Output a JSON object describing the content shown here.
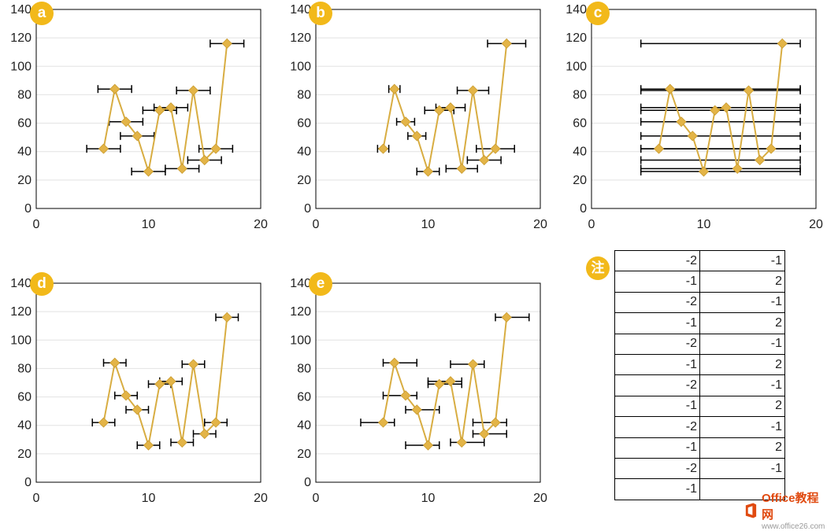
{
  "colors": {
    "series": "#d8ad42",
    "marker": "#e3b447",
    "errorbar": "#000000",
    "grid": "#e2e2e2",
    "badge": "#f2b91a"
  },
  "note": {
    "badge": "注",
    "rows": [
      [
        "-2",
        "-1"
      ],
      [
        "-1",
        "2"
      ],
      [
        "-2",
        "-1"
      ],
      [
        "-1",
        "2"
      ],
      [
        "-2",
        "-1"
      ],
      [
        "-1",
        "2"
      ],
      [
        "-2",
        "-1"
      ],
      [
        "-1",
        "2"
      ],
      [
        "-2",
        "-1"
      ],
      [
        "-1",
        "2"
      ],
      [
        "-2",
        "-1"
      ],
      [
        "-1",
        ""
      ]
    ]
  },
  "watermark": {
    "logo_text": "Office教程网",
    "url": "www.office26.com"
  },
  "chart_data": [
    {
      "type": "scatter",
      "badge": "a",
      "xlim": [
        0,
        20
      ],
      "ylim": [
        0,
        140
      ],
      "x_ticks": [
        "0",
        "10",
        "20"
      ],
      "y_ticks": [
        "0",
        "20",
        "40",
        "60",
        "80",
        "100",
        "120",
        "140"
      ],
      "grid": "horizontal",
      "points": [
        {
          "x": 6,
          "y": 42,
          "xerr_minus": 1.5,
          "xerr_plus": 1.5
        },
        {
          "x": 7,
          "y": 84,
          "xerr_minus": 1.5,
          "xerr_plus": 1.5
        },
        {
          "x": 8,
          "y": 61,
          "xerr_minus": 1.5,
          "xerr_plus": 1.5
        },
        {
          "x": 9,
          "y": 51,
          "xerr_minus": 1.5,
          "xerr_plus": 1.5
        },
        {
          "x": 10,
          "y": 26,
          "xerr_minus": 1.5,
          "xerr_plus": 1.5
        },
        {
          "x": 11,
          "y": 69,
          "xerr_minus": 1.5,
          "xerr_plus": 1.5
        },
        {
          "x": 12,
          "y": 71,
          "xerr_minus": 1.5,
          "xerr_plus": 1.5
        },
        {
          "x": 13,
          "y": 28,
          "xerr_minus": 1.5,
          "xerr_plus": 1.5
        },
        {
          "x": 14,
          "y": 83,
          "xerr_minus": 1.5,
          "xerr_plus": 1.5
        },
        {
          "x": 15,
          "y": 34,
          "xerr_minus": 1.5,
          "xerr_plus": 1.5
        },
        {
          "x": 16,
          "y": 42,
          "xerr_minus": 1.5,
          "xerr_plus": 1.5
        },
        {
          "x": 17,
          "y": 116,
          "xerr_minus": 1.5,
          "xerr_plus": 1.5
        }
      ]
    },
    {
      "type": "scatter",
      "badge": "b",
      "xlim": [
        0,
        20
      ],
      "ylim": [
        0,
        140
      ],
      "x_ticks": [
        "0",
        "10",
        "20"
      ],
      "y_ticks": [
        "0",
        "20",
        "40",
        "60",
        "80",
        "100",
        "120",
        "140"
      ],
      "grid": "horizontal",
      "points": [
        {
          "x": 6,
          "y": 42,
          "xerr_minus": 0.5,
          "xerr_plus": 0.5
        },
        {
          "x": 7,
          "y": 84,
          "xerr_minus": 0.5,
          "xerr_plus": 0.5
        },
        {
          "x": 8,
          "y": 61,
          "xerr_minus": 0.8,
          "xerr_plus": 0.8
        },
        {
          "x": 9,
          "y": 51,
          "xerr_minus": 0.8,
          "xerr_plus": 0.8
        },
        {
          "x": 10,
          "y": 26,
          "xerr_minus": 1,
          "xerr_plus": 1
        },
        {
          "x": 11,
          "y": 69,
          "xerr_minus": 1.3,
          "xerr_plus": 1.3
        },
        {
          "x": 12,
          "y": 71,
          "xerr_minus": 1.3,
          "xerr_plus": 1.3
        },
        {
          "x": 13,
          "y": 28,
          "xerr_minus": 1.4,
          "xerr_plus": 1.4
        },
        {
          "x": 14,
          "y": 83,
          "xerr_minus": 1.4,
          "xerr_plus": 1.4
        },
        {
          "x": 15,
          "y": 34,
          "xerr_minus": 1.5,
          "xerr_plus": 1.5
        },
        {
          "x": 16,
          "y": 42,
          "xerr_minus": 1.7,
          "xerr_plus": 1.7
        },
        {
          "x": 17,
          "y": 116,
          "xerr_minus": 1.7,
          "xerr_plus": 1.7
        }
      ]
    },
    {
      "type": "scatter",
      "badge": "c",
      "xlim": [
        0,
        20
      ],
      "ylim": [
        0,
        140
      ],
      "x_ticks": [
        "0",
        "10",
        "20"
      ],
      "y_ticks": [
        "0",
        "20",
        "40",
        "60",
        "80",
        "100",
        "120",
        "140"
      ],
      "grid": "horizontal",
      "points": [
        {
          "x": 6,
          "y": 42,
          "xerr_minus": 1.6,
          "xerr_plus": 12.6
        },
        {
          "x": 7,
          "y": 84,
          "xerr_minus": 2.6,
          "xerr_plus": 11.6
        },
        {
          "x": 8,
          "y": 61,
          "xerr_minus": 3.6,
          "xerr_plus": 10.6
        },
        {
          "x": 9,
          "y": 51,
          "xerr_minus": 4.6,
          "xerr_plus": 9.6
        },
        {
          "x": 10,
          "y": 26,
          "xerr_minus": 5.6,
          "xerr_plus": 8.6
        },
        {
          "x": 11,
          "y": 69,
          "xerr_minus": 6.6,
          "xerr_plus": 7.6
        },
        {
          "x": 12,
          "y": 71,
          "xerr_minus": 7.6,
          "xerr_plus": 6.6
        },
        {
          "x": 13,
          "y": 28,
          "xerr_minus": 8.6,
          "xerr_plus": 5.6
        },
        {
          "x": 14,
          "y": 83,
          "xerr_minus": 9.6,
          "xerr_plus": 4.6
        },
        {
          "x": 15,
          "y": 34,
          "xerr_minus": 10.6,
          "xerr_plus": 3.6
        },
        {
          "x": 16,
          "y": 42,
          "xerr_minus": 11.6,
          "xerr_plus": 2.6
        },
        {
          "x": 17,
          "y": 116,
          "xerr_minus": 12.6,
          "xerr_plus": 1.6
        }
      ]
    },
    {
      "type": "scatter",
      "badge": "d",
      "xlim": [
        0,
        20
      ],
      "ylim": [
        0,
        140
      ],
      "x_ticks": [
        "0",
        "10",
        "20"
      ],
      "y_ticks": [
        "0",
        "20",
        "40",
        "60",
        "80",
        "100",
        "120",
        "140"
      ],
      "grid": "horizontal",
      "points": [
        {
          "x": 6,
          "y": 42,
          "xerr_minus": 1,
          "xerr_plus": 1
        },
        {
          "x": 7,
          "y": 84,
          "xerr_minus": 1,
          "xerr_plus": 1
        },
        {
          "x": 8,
          "y": 61,
          "xerr_minus": 1,
          "xerr_plus": 1
        },
        {
          "x": 9,
          "y": 51,
          "xerr_minus": 1,
          "xerr_plus": 1
        },
        {
          "x": 10,
          "y": 26,
          "xerr_minus": 1,
          "xerr_plus": 1
        },
        {
          "x": 11,
          "y": 69,
          "xerr_minus": 1,
          "xerr_plus": 1
        },
        {
          "x": 12,
          "y": 71,
          "xerr_minus": 1,
          "xerr_plus": 1
        },
        {
          "x": 13,
          "y": 28,
          "xerr_minus": 1,
          "xerr_plus": 1
        },
        {
          "x": 14,
          "y": 83,
          "xerr_minus": 1,
          "xerr_plus": 1
        },
        {
          "x": 15,
          "y": 34,
          "xerr_minus": 1,
          "xerr_plus": 1
        },
        {
          "x": 16,
          "y": 42,
          "xerr_minus": 1,
          "xerr_plus": 1
        },
        {
          "x": 17,
          "y": 116,
          "xerr_minus": 1,
          "xerr_plus": 1
        }
      ]
    },
    {
      "type": "scatter",
      "badge": "e",
      "xlim": [
        0,
        20
      ],
      "ylim": [
        0,
        140
      ],
      "x_ticks": [
        "0",
        "10",
        "20"
      ],
      "y_ticks": [
        "0",
        "20",
        "40",
        "60",
        "80",
        "100",
        "120",
        "140"
      ],
      "grid": "horizontal",
      "points": [
        {
          "x": 6,
          "y": 42,
          "xerr_minus": 2,
          "xerr_plus": 1
        },
        {
          "x": 7,
          "y": 84,
          "xerr_minus": 1,
          "xerr_plus": 2
        },
        {
          "x": 8,
          "y": 61,
          "xerr_minus": 2,
          "xerr_plus": 1
        },
        {
          "x": 9,
          "y": 51,
          "xerr_minus": 1,
          "xerr_plus": 2
        },
        {
          "x": 10,
          "y": 26,
          "xerr_minus": 2,
          "xerr_plus": 1
        },
        {
          "x": 11,
          "y": 69,
          "xerr_minus": 1,
          "xerr_plus": 2
        },
        {
          "x": 12,
          "y": 71,
          "xerr_minus": 2,
          "xerr_plus": 1
        },
        {
          "x": 13,
          "y": 28,
          "xerr_minus": 1,
          "xerr_plus": 2
        },
        {
          "x": 14,
          "y": 83,
          "xerr_minus": 2,
          "xerr_plus": 1
        },
        {
          "x": 15,
          "y": 34,
          "xerr_minus": 1,
          "xerr_plus": 2
        },
        {
          "x": 16,
          "y": 42,
          "xerr_minus": 2,
          "xerr_plus": 1
        },
        {
          "x": 17,
          "y": 116,
          "xerr_minus": 1,
          "xerr_plus": 2
        }
      ]
    }
  ]
}
